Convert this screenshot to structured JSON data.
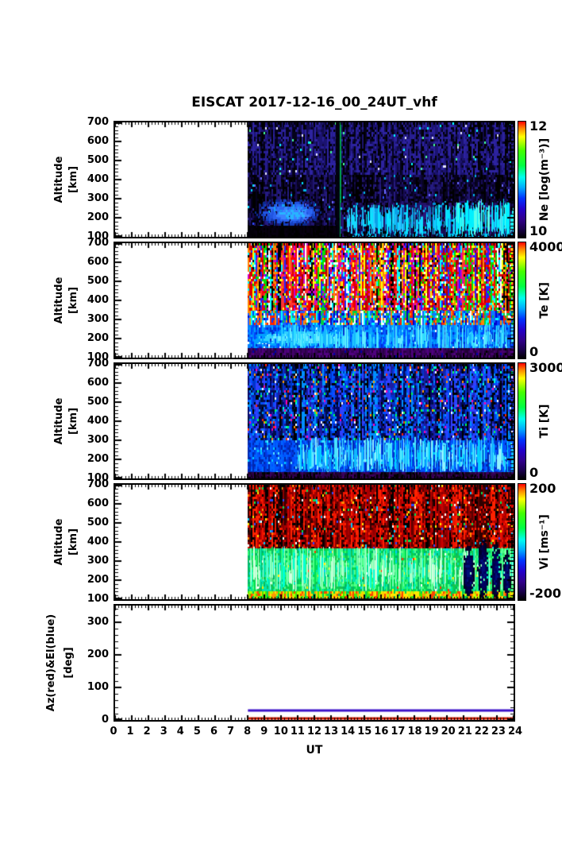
{
  "title": "EISCAT 2017-12-16_00_24UT_vhf",
  "xlabel": "UT",
  "x_ticks": [
    0,
    1,
    2,
    3,
    4,
    5,
    6,
    7,
    8,
    9,
    10,
    11,
    12,
    13,
    14,
    15,
    16,
    17,
    18,
    19,
    20,
    21,
    22,
    23,
    24
  ],
  "x_minor_step": 0.2,
  "y_minor_step": 20,
  "chart_data": [
    {
      "name": "Ne",
      "type": "heatmap",
      "ylabel1": "Altitude",
      "ylabel2": "[km]",
      "x_range": [
        0,
        24
      ],
      "y_range": [
        100,
        700
      ],
      "y_ticks": [
        100,
        200,
        300,
        400,
        500,
        600,
        700
      ],
      "data_t_range": [
        8,
        24
      ],
      "description": "Electron density spectrogram; data only 08-24 UT; dark blue/purple noise aloft, blue blob 170-300 km 08-12 UT, cyan wispy E/F-region structures 100-270 km after 14 UT, dark gap near 13.3 UT with green calibration line",
      "colorbar": {
        "label": "Ne [log(m⁻³)]",
        "max": "12",
        "min": "10",
        "colors": [
          "#ff0000",
          "#ff8800",
          "#ffff00",
          "#44ff00",
          "#00ff44",
          "#00ffee",
          "#00aaff",
          "#0033ff",
          "#2200cc",
          "#30008c",
          "#1c0050",
          "#000000"
        ],
        "stops": [
          0,
          6,
          13,
          25,
          38,
          48,
          57,
          66,
          75,
          84,
          92,
          100
        ]
      },
      "seed": 11,
      "layers": [
        {
          "mode": "noise",
          "t": [
            8,
            24
          ],
          "alt": [
            100,
            700
          ],
          "palette": [
            "#05001c",
            "#0d0438",
            "#160b52",
            "#1f1670",
            "#08041f",
            "#000000",
            "#000000",
            "#251b80"
          ],
          "rare": [
            "#2e4bff",
            "#00b4e6",
            "#6a6aff",
            "#00e0ff"
          ],
          "rareP": 0.025
        },
        {
          "mode": "noise",
          "t": [
            8,
            24
          ],
          "alt": [
            430,
            700
          ],
          "palette": [
            "#1b1370",
            "#271e92",
            "#110a4a",
            "#04021a",
            "#000000",
            "#2d23a0"
          ],
          "rare": [
            "#00ffff",
            "#e8e8ff",
            "#44ff99"
          ],
          "rareP": 0.02
        },
        {
          "mode": "noise",
          "t": [
            8,
            13.35
          ],
          "alt": [
            100,
            160
          ],
          "palette": [
            "#000000",
            "#030008",
            "#070010"
          ]
        },
        {
          "mode": "blob",
          "t": [
            8.4,
            12.5
          ],
          "alt": [
            160,
            310
          ],
          "palette": [
            "#0a2a90",
            "#1440c0",
            "#2055e0",
            "#2c6ef8",
            "#18a0f0"
          ],
          "fade": 0.7
        },
        {
          "mode": "blob",
          "t": [
            9.3,
            11.9
          ],
          "alt": [
            185,
            265
          ],
          "palette": [
            "#2b62f0",
            "#3c82ff",
            "#28b4ff"
          ],
          "fade": 0.5
        },
        {
          "mode": "noise",
          "t": [
            13.28,
            13.52
          ],
          "alt": [
            100,
            700
          ],
          "palette": [
            "#010108",
            "#030312"
          ]
        },
        {
          "mode": "noise",
          "t": [
            13.52,
            13.6
          ],
          "alt": [
            100,
            700
          ],
          "palette": [
            "#00a656",
            "#009948"
          ]
        },
        {
          "mode": "noise",
          "t": [
            13.6,
            24
          ],
          "alt": [
            100,
            280
          ],
          "palette": [
            "#170a4e",
            "#221168",
            "#0d0534",
            "#2a1578",
            "#000000"
          ],
          "rare": [
            "#00c8f0",
            "#0090d8"
          ],
          "rareP": 0.1
        },
        {
          "mode": "streaks",
          "t": [
            13.9,
            24
          ],
          "alt": [
            100,
            270
          ],
          "count": 220,
          "palette": [
            "#00e4ff",
            "#2cc8ff",
            "#0ba0e8",
            "#10e0ff"
          ]
        },
        {
          "mode": "noise",
          "t": [
            14.3,
            24
          ],
          "alt": [
            100,
            116
          ],
          "palette": [
            "#00d2f8",
            "#00b4f0",
            "#071a60"
          ],
          "skipP": 0.3
        },
        {
          "mode": "streaks",
          "t": [
            20.5,
            24
          ],
          "alt": [
            100,
            300
          ],
          "count": 60,
          "palette": [
            "#00f0ff",
            "#58ffea"
          ]
        }
      ]
    },
    {
      "name": "Te",
      "type": "heatmap",
      "ylabel1": "Altitude",
      "ylabel2": "[km]",
      "x_range": [
        0,
        24
      ],
      "y_range": [
        100,
        700
      ],
      "y_ticks": [
        100,
        200,
        300,
        400,
        500,
        600,
        700
      ],
      "data_t_range": [
        8,
        24
      ],
      "description": "Electron temperature; saturated multicolour noise above ~340 km, blue/cyan 150-300 km with bright light-blue band 08-14 UT, dark purple below 150 km",
      "colorbar": {
        "label": "Te [K]",
        "max": "4000",
        "min": "0",
        "colors": [
          "#ff0000",
          "#ff8800",
          "#ffff00",
          "#44ff00",
          "#00ff44",
          "#00ffee",
          "#00aaff",
          "#0033ff",
          "#2200cc",
          "#30008c",
          "#1c0050",
          "#000000"
        ],
        "stops": [
          0,
          6,
          13,
          25,
          38,
          48,
          57,
          66,
          75,
          84,
          92,
          100
        ]
      },
      "seed": 22,
      "layers": [
        {
          "mode": "noise",
          "t": [
            8,
            24
          ],
          "alt": [
            330,
            700
          ],
          "palette": [
            "#ff0000",
            "#e00000",
            "#ffffff",
            "#00e000",
            "#2222ff",
            "#00ffff",
            "#ffff00",
            "#ff8800",
            "#000000",
            "#cc00cc",
            "#b00000",
            "#ff3333"
          ]
        },
        {
          "mode": "noise",
          "t": [
            8,
            24
          ],
          "alt": [
            260,
            345
          ],
          "palette": [
            "#0040ff",
            "#ff2200",
            "#00ffff",
            "#0000cc",
            "#00cc44",
            "#ffffff",
            "#2060ff",
            "#ff8800",
            "#0088ff"
          ]
        },
        {
          "mode": "noise",
          "t": [
            8,
            24
          ],
          "alt": [
            145,
            270
          ],
          "palette": [
            "#0048ff",
            "#0064ff",
            "#0080ff",
            "#0030d0",
            "#00a0ff"
          ],
          "rare": [
            "#40e4ff",
            "#80f2ff",
            "#ffffff"
          ],
          "rareP": 0.05
        },
        {
          "mode": "blob",
          "t": [
            8,
            14.2
          ],
          "alt": [
            165,
            250
          ],
          "palette": [
            "#00a0ff",
            "#30d0ff",
            "#70ecff"
          ],
          "fade": 0.6
        },
        {
          "mode": "streaks",
          "t": [
            10,
            24
          ],
          "alt": [
            130,
            280
          ],
          "count": 260,
          "palette": [
            "#30dcff",
            "#60ecff",
            "#16b8ff"
          ]
        },
        {
          "mode": "noise",
          "t": [
            8,
            24
          ],
          "alt": [
            100,
            148
          ],
          "palette": [
            "#38005c",
            "#2a0046",
            "#46006e",
            "#200034",
            "#500080"
          ],
          "rare": [
            "#000000",
            "#0000aa"
          ],
          "rareP": 0.05
        }
      ]
    },
    {
      "name": "Ti",
      "type": "heatmap",
      "ylabel1": "Altitude",
      "ylabel2": "[km]",
      "x_range": [
        0,
        24
      ],
      "y_range": [
        100,
        700
      ],
      "y_ticks": [
        100,
        200,
        300,
        400,
        500,
        600,
        700
      ],
      "data_t_range": [
        8,
        24
      ],
      "description": "Ion temperature; blue-dominated noise with sparse red/green/white speckles aloft, blue with cyan wisps 130-320 km, dark purple below 130 km",
      "colorbar": {
        "label": "Ti [K]",
        "max": "3000",
        "min": "0",
        "colors": [
          "#ff0000",
          "#ff8800",
          "#ffff00",
          "#44ff00",
          "#00ff44",
          "#00ffee",
          "#00aaff",
          "#0033ff",
          "#2200cc",
          "#30008c",
          "#1c0050",
          "#000000"
        ],
        "stops": [
          0,
          6,
          13,
          25,
          38,
          48,
          57,
          66,
          75,
          84,
          92,
          100
        ]
      },
      "seed": 33,
      "layers": [
        {
          "mode": "noise",
          "t": [
            8,
            24
          ],
          "alt": [
            290,
            700
          ],
          "palette": [
            "#0034cc",
            "#0050ff",
            "#1c1ca0",
            "#0090ff",
            "#000666",
            "#3040ff",
            "#001040",
            "#000000"
          ],
          "rare": [
            "#ff2200",
            "#00ff55",
            "#ffffff",
            "#ff9900",
            "#00ffd0",
            "#ff00aa"
          ],
          "rareP": 0.07
        },
        {
          "mode": "noise",
          "t": [
            8,
            24
          ],
          "alt": [
            130,
            300
          ],
          "palette": [
            "#0038e0",
            "#0052ff",
            "#0028b0",
            "#0066ff"
          ],
          "rare": [
            "#00ccff",
            "#55e4ff"
          ],
          "rareP": 0.08
        },
        {
          "mode": "streaks",
          "t": [
            11,
            24
          ],
          "alt": [
            130,
            320
          ],
          "count": 300,
          "palette": [
            "#00d0ff",
            "#48e4ff",
            "#90f2ff",
            "#18b0ff"
          ]
        },
        {
          "mode": "noise",
          "t": [
            8,
            24
          ],
          "alt": [
            100,
            132
          ],
          "palette": [
            "#30004a",
            "#3c005c",
            "#26003a",
            "#16041e",
            "#000000"
          ]
        }
      ]
    },
    {
      "name": "Vi",
      "type": "heatmap",
      "ylabel1": "Altitude",
      "ylabel2": "[km]",
      "x_range": [
        0,
        24
      ],
      "y_range": [
        100,
        700
      ],
      "y_ticks": [
        100,
        200,
        300,
        400,
        500,
        600,
        700
      ],
      "data_t_range": [
        8,
        24
      ],
      "description": "Ion velocity; red/black noise above ~350 km, green/cyan 140-380 km, hot yellow-red stripe 105-140 km, dark navy vertical blobs 21-24 UT",
      "colorbar": {
        "label": "Vi [ms⁻¹]",
        "max": "200",
        "min": "-200",
        "colors": [
          "#ff0000",
          "#ff8800",
          "#ffff00",
          "#44ff00",
          "#00ff44",
          "#00ffee",
          "#00aaff",
          "#0033ff",
          "#2200cc",
          "#30008c",
          "#1c0050",
          "#000000"
        ],
        "stops": [
          0,
          6,
          13,
          25,
          38,
          48,
          57,
          66,
          75,
          84,
          92,
          100
        ]
      },
      "seed": 44,
      "layers": [
        {
          "mode": "noise",
          "t": [
            8,
            24
          ],
          "alt": [
            350,
            700
          ],
          "palette": [
            "#cc0000",
            "#ee1500",
            "#8c0000",
            "#000000",
            "#a80000",
            "#560000",
            "#300000",
            "#ff2200"
          ],
          "rare": [
            "#00e050",
            "#ffffff",
            "#2a48ff",
            "#ffe400",
            "#00c8ff",
            "#ff8800"
          ],
          "rareP": 0.06
        },
        {
          "mode": "noise",
          "t": [
            8,
            24
          ],
          "alt": [
            140,
            365
          ],
          "palette": [
            "#00dc50",
            "#2cf870",
            "#00b86a",
            "#50ff88",
            "#00e4ac",
            "#18c050"
          ],
          "rare": [
            "#ff3300",
            "#ffee00",
            "#00ccff",
            "#ffffff"
          ],
          "rareP": 0.03
        },
        {
          "mode": "streaks",
          "t": [
            8,
            24
          ],
          "alt": [
            140,
            380
          ],
          "count": 260,
          "palette": [
            "#aaffc8",
            "#70ffb0",
            "#00ffd8",
            "#d4ffe0"
          ]
        },
        {
          "mode": "noise",
          "t": [
            8,
            24
          ],
          "alt": [
            104,
            142
          ],
          "palette": [
            "#ffe800",
            "#ff9900",
            "#ff4400",
            "#44e800",
            "#ffcc00",
            "#00cc55",
            "#aaff00"
          ]
        },
        {
          "mode": "blob",
          "t": [
            20.9,
            21.6
          ],
          "alt": [
            100,
            390
          ],
          "palette": [
            "#000020",
            "#000030",
            "#000046",
            "#00005e",
            "#001078"
          ],
          "fade": 0.35
        },
        {
          "mode": "blob",
          "t": [
            21.8,
            22.45
          ],
          "alt": [
            100,
            420
          ],
          "palette": [
            "#000020",
            "#000030",
            "#000046",
            "#00005e",
            "#001078"
          ],
          "fade": 0.35
        },
        {
          "mode": "blob",
          "t": [
            22.6,
            23.2
          ],
          "alt": [
            100,
            400
          ],
          "palette": [
            "#000020",
            "#000030",
            "#000046",
            "#00005e",
            "#001078"
          ],
          "fade": 0.35
        },
        {
          "mode": "blob",
          "t": [
            23.3,
            23.8
          ],
          "alt": [
            100,
            360
          ],
          "palette": [
            "#000020",
            "#000030",
            "#000046",
            "#00005e",
            "#001078"
          ],
          "fade": 0.35
        },
        {
          "mode": "noise",
          "t": [
            8,
            24
          ],
          "alt": [
            100,
            105
          ],
          "palette": [
            "#200010",
            "#301000",
            "#103000",
            "#3c0000",
            "#000000"
          ]
        }
      ]
    },
    {
      "name": "AzEl",
      "type": "line",
      "ylabel1": "Az(red)&El(blue)",
      "ylabel2": "[deg]",
      "x_range": [
        0,
        24
      ],
      "y_range": [
        0,
        350
      ],
      "y_ticks": [
        0,
        100,
        200,
        300
      ],
      "series": [
        {
          "name": "Az",
          "color": "#cc1a00",
          "value": 2,
          "t": [
            8,
            24
          ]
        },
        {
          "name": "El",
          "color": "#3a10c8",
          "value": 30,
          "t": [
            8,
            24
          ]
        }
      ]
    }
  ]
}
